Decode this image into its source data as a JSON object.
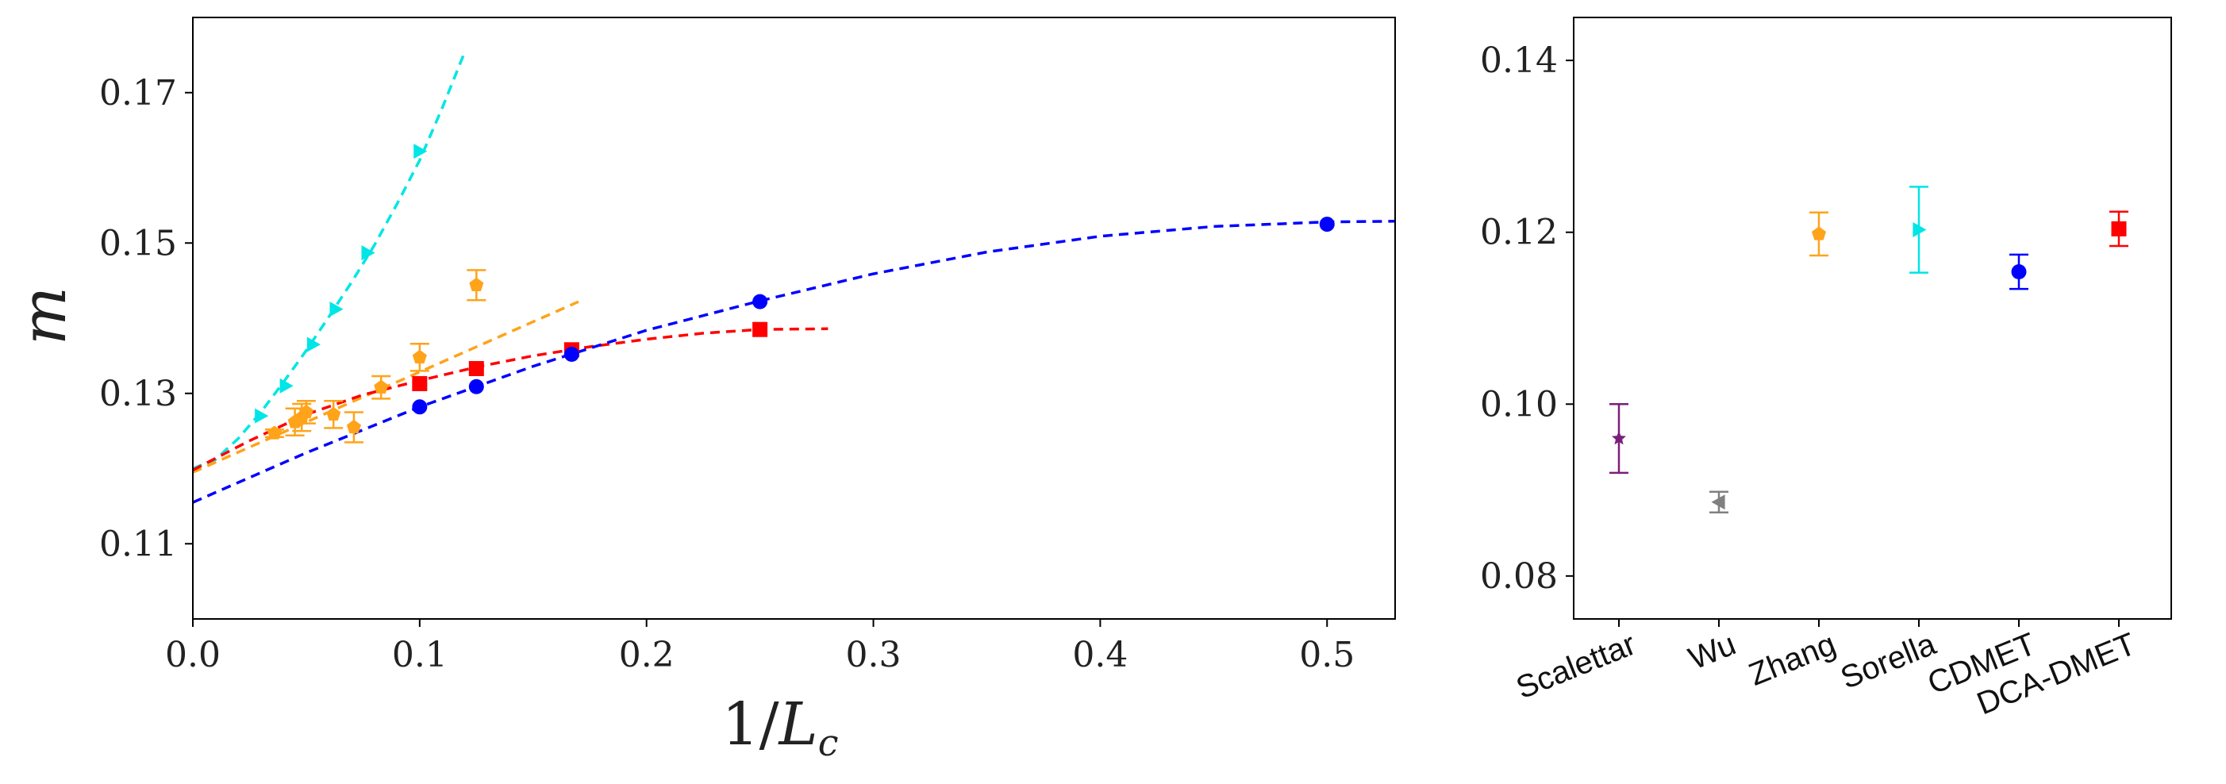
{
  "chart_data": [
    {
      "type": "scatter",
      "xlabel": "1/L_c",
      "ylabel": "m",
      "xlim": [
        0.0,
        0.53
      ],
      "ylim": [
        0.1,
        0.18
      ],
      "xticks": [
        "0.0",
        "0.1",
        "0.2",
        "0.3",
        "0.4",
        "0.5"
      ],
      "yticks": [
        "0.11",
        "0.13",
        "0.15",
        "0.17"
      ],
      "grid": false,
      "series": [
        {
          "color": "#00e5e5",
          "marker": "triangle-right",
          "x": [
            0.03,
            0.041,
            0.053,
            0.063,
            0.077,
            0.1
          ],
          "y": [
            0.127,
            0.131,
            0.1365,
            0.1412,
            0.1487,
            0.1622
          ],
          "fit": {
            "x": [
              0.0,
              0.01,
              0.02,
              0.03,
              0.04,
              0.05,
              0.06,
              0.07,
              0.08,
              0.09,
              0.1,
              0.11,
              0.12
            ],
            "y": [
              0.12,
              0.1212,
              0.124,
              0.1275,
              0.1315,
              0.1357,
              0.1402,
              0.1448,
              0.1497,
              0.1552,
              0.161,
              0.168,
              0.1755
            ]
          }
        },
        {
          "color": "#ffa31a",
          "marker": "pentagon",
          "x": [
            0.036,
            0.045,
            0.048,
            0.05,
            0.062,
            0.071,
            0.083,
            0.1,
            0.125
          ],
          "y": [
            0.1247,
            0.1262,
            0.1268,
            0.1275,
            0.1272,
            0.1255,
            0.1308,
            0.1348,
            0.1444
          ],
          "yerr": [
            0.0005,
            0.0018,
            0.0018,
            0.0015,
            0.0018,
            0.002,
            0.0015,
            0.0018,
            0.002
          ],
          "fit": {
            "x": [
              0.0,
              0.17
            ],
            "y": [
              0.1195,
              0.1422
            ]
          }
        },
        {
          "color": "#ff0000",
          "marker": "square",
          "x": [
            0.1,
            0.125,
            0.167,
            0.25
          ],
          "y": [
            0.1313,
            0.1333,
            0.1358,
            0.1385
          ],
          "fit": {
            "x": [
              0.0,
              0.025,
              0.05,
              0.075,
              0.1,
              0.125,
              0.15,
              0.175,
              0.2,
              0.225,
              0.25,
              0.28
            ],
            "y": [
              0.1198,
              0.1237,
              0.1272,
              0.1298,
              0.1317,
              0.1335,
              0.135,
              0.1362,
              0.1372,
              0.138,
              0.1385,
              0.1386
            ]
          }
        },
        {
          "color": "#0000ff",
          "marker": "circle",
          "x": [
            0.1,
            0.125,
            0.167,
            0.25,
            0.5
          ],
          "y": [
            0.1282,
            0.1309,
            0.1352,
            0.1422,
            0.1525
          ],
          "fit": {
            "x": [
              0.0,
              0.05,
              0.1,
              0.15,
              0.2,
              0.25,
              0.3,
              0.35,
              0.4,
              0.45,
              0.5,
              0.53
            ],
            "y": [
              0.1155,
              0.1221,
              0.1282,
              0.1336,
              0.1384,
              0.1423,
              0.1459,
              0.1488,
              0.1509,
              0.1522,
              0.1528,
              0.1529
            ]
          }
        }
      ]
    },
    {
      "type": "scatter",
      "categories": [
        "Scalettar",
        "Wu",
        "Zhang",
        "Sorella",
        "CDMET",
        "DCA-DMET"
      ],
      "yticks": [
        "0.08",
        "0.10",
        "0.12",
        "0.14"
      ],
      "ylim": [
        0.075,
        0.145
      ],
      "grid": false,
      "points": [
        {
          "category": "Scalettar",
          "value": 0.096,
          "err": 0.004,
          "color": "#7a1f7a",
          "marker": "star"
        },
        {
          "category": "Wu",
          "value": 0.0886,
          "err": 0.0012,
          "color": "#808080",
          "marker": "triangle-left"
        },
        {
          "category": "Zhang",
          "value": 0.1198,
          "err": 0.0025,
          "color": "#ffa31a",
          "marker": "pentagon"
        },
        {
          "category": "Sorella",
          "value": 0.1203,
          "err": 0.005,
          "color": "#00e5e5",
          "marker": "triangle-right"
        },
        {
          "category": "CDMET",
          "value": 0.1154,
          "err": 0.002,
          "color": "#0000ff",
          "marker": "circle"
        },
        {
          "category": "DCA-DMET",
          "value": 0.1204,
          "err": 0.002,
          "color": "#ff0000",
          "marker": "square"
        }
      ]
    }
  ]
}
